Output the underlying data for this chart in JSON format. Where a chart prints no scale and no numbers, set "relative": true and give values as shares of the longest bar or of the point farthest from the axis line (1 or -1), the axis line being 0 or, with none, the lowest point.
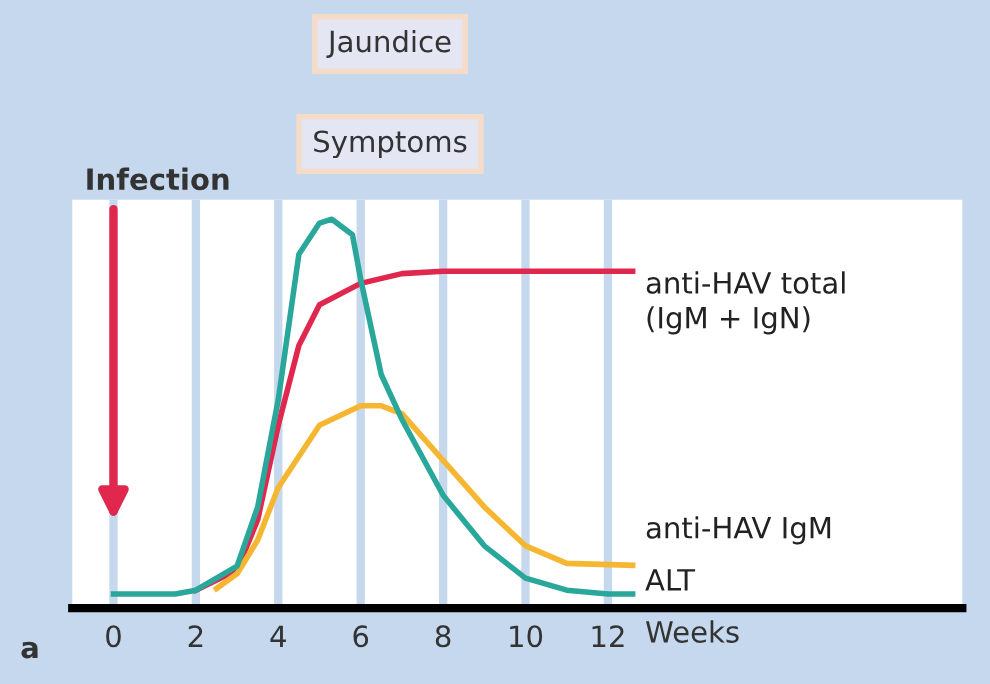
{
  "chart_data": {
    "type": "line",
    "relative": true,
    "xlabel": "Weeks",
    "xlim": [
      -1,
      20.6
    ],
    "xticks": [
      0,
      2,
      4,
      6,
      8,
      10,
      12
    ],
    "grid": "x",
    "legend": false,
    "marker": "none",
    "line_style": "solid",
    "annotations": [
      "Jaundice",
      "Symptoms",
      "Infection",
      "a"
    ],
    "series": [
      {
        "name": "anti-HAV total\n(IgM + IgN)",
        "color": "#e0284f",
        "x": [
          2,
          3,
          3.5,
          4,
          4.5,
          5,
          6,
          7,
          8,
          12.6
        ],
        "values": [
          0.046,
          0.098,
          0.227,
          0.47,
          0.675,
          0.78,
          0.835,
          0.86,
          0.866,
          0.866
        ]
      },
      {
        "name": "anti-HAV IgM",
        "color": "#f5b731",
        "x": [
          2.5,
          3,
          3.5,
          4,
          5,
          6,
          6.5,
          7,
          8,
          9,
          10,
          11,
          12.6
        ],
        "values": [
          0.05,
          0.088,
          0.175,
          0.31,
          0.47,
          0.52,
          0.52,
          0.5,
          0.38,
          0.26,
          0.16,
          0.115,
          0.11
        ]
      },
      {
        "name": "ALT",
        "color": "#2aa79b",
        "x": [
          0,
          1.5,
          2,
          3,
          3.5,
          4,
          4.5,
          5,
          5.3,
          5.8,
          6,
          6.5,
          7,
          8,
          9,
          10,
          11,
          12,
          12.6
        ],
        "values": [
          0.036,
          0.036,
          0.046,
          0.108,
          0.26,
          0.536,
          0.91,
          0.99,
          1.0,
          0.96,
          0.845,
          0.6,
          0.485,
          0.29,
          0.16,
          0.077,
          0.046,
          0.036,
          0.036
        ]
      }
    ]
  }
}
